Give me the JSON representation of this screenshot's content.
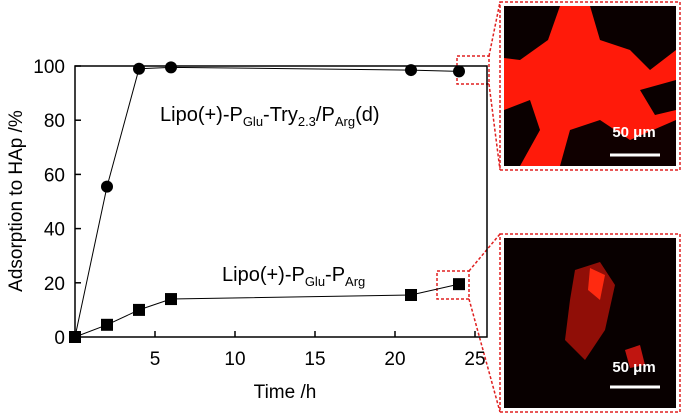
{
  "chart_data": {
    "type": "line",
    "x_label": "Time /h",
    "y_label": "Adsorption to HAp /%",
    "xlim": [
      0,
      25
    ],
    "xticks": [
      5,
      10,
      15,
      20,
      25
    ],
    "ylim": [
      0,
      100
    ],
    "yticks": [
      0,
      20,
      40,
      60,
      80,
      100
    ],
    "series": [
      {
        "name": [
          {
            "text": "Lipo(+)-P"
          },
          {
            "text": "Glu",
            "sub": true
          },
          {
            "text": "-Try"
          },
          {
            "text": "2.3",
            "sub": true
          },
          {
            "text": "/P"
          },
          {
            "text": "Arg",
            "sub": true
          },
          {
            "text": "(d)"
          }
        ],
        "marker": "circle",
        "color": "#000000",
        "x": [
          0,
          2,
          4,
          6,
          21,
          24
        ],
        "values": [
          0,
          55.5,
          99,
          99.5,
          98.5,
          98
        ]
      },
      {
        "name": [
          {
            "text": "Lipo(+)-P"
          },
          {
            "text": "Glu",
            "sub": true
          },
          {
            "text": "-P"
          },
          {
            "text": "Arg",
            "sub": true
          }
        ],
        "marker": "square",
        "color": "#000000",
        "x": [
          0,
          2,
          4,
          6,
          21,
          24
        ],
        "values": [
          0,
          4.5,
          10,
          14,
          15.5,
          19.5
        ]
      }
    ]
  },
  "images": [
    {
      "scale_bar": "50 μm"
    },
    {
      "scale_bar": "50 μm"
    }
  ]
}
